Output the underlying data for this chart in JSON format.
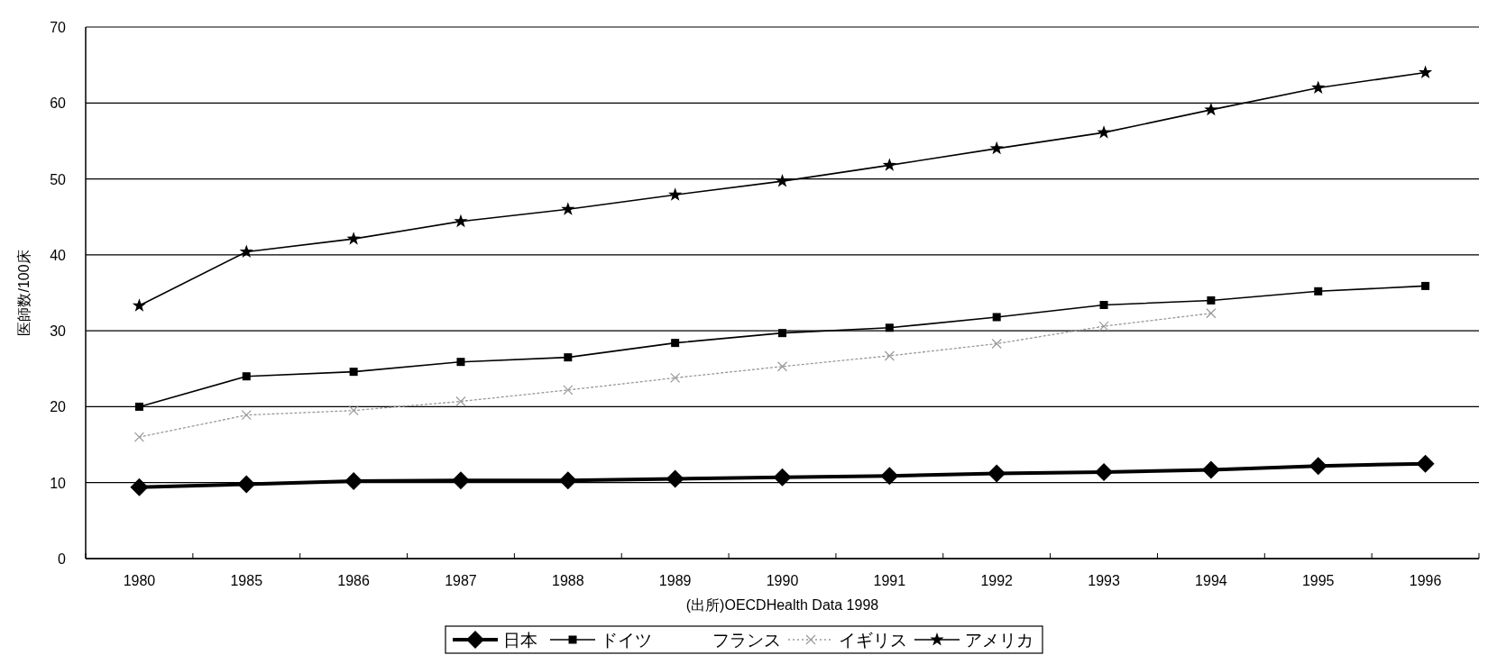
{
  "chart_data": {
    "type": "line",
    "ylabel": "医師数/100床",
    "annotations": [
      "(出所)OECDHealth Data 1998"
    ],
    "categories": [
      "1980",
      "1985",
      "1986",
      "1987",
      "1988",
      "1989",
      "1990",
      "1991",
      "1992",
      "1993",
      "1994",
      "1995",
      "1996"
    ],
    "ylim": [
      0,
      70
    ],
    "yticks": [
      0,
      10,
      20,
      30,
      40,
      50,
      60,
      70
    ],
    "grid": "y",
    "legend": "bottom",
    "series": [
      {
        "name": "日本",
        "color": "#000000",
        "marker": "diamond",
        "line_style": "solid",
        "values": [
          9.4,
          9.8,
          10.2,
          10.3,
          10.3,
          10.5,
          10.7,
          10.9,
          11.2,
          11.4,
          11.7,
          12.2,
          12.5
        ]
      },
      {
        "name": "ドイツ",
        "color": "#000000",
        "marker": "square",
        "line_style": "solid",
        "values": [
          20.0,
          24.0,
          24.6,
          25.9,
          26.5,
          28.4,
          29.7,
          30.4,
          31.8,
          33.4,
          34.0,
          35.2,
          35.9
        ]
      },
      {
        "name": "フランス",
        "values": [
          null,
          null,
          null,
          null,
          null,
          null,
          null,
          null,
          null,
          null,
          null,
          null,
          null
        ]
      },
      {
        "name": "イギリス",
        "color": "#999999",
        "marker": "cross",
        "line_style": "dotted",
        "values": [
          16.0,
          18.9,
          19.5,
          20.7,
          22.2,
          23.8,
          25.3,
          26.7,
          28.3,
          30.6,
          32.3,
          null,
          null
        ]
      },
      {
        "name": "アメリカ",
        "color": "#000000",
        "marker": "star",
        "line_style": "solid",
        "values": [
          33.3,
          40.4,
          42.1,
          44.4,
          46.0,
          47.9,
          49.7,
          51.8,
          54.0,
          56.1,
          59.1,
          62.0,
          64.0
        ]
      }
    ]
  }
}
